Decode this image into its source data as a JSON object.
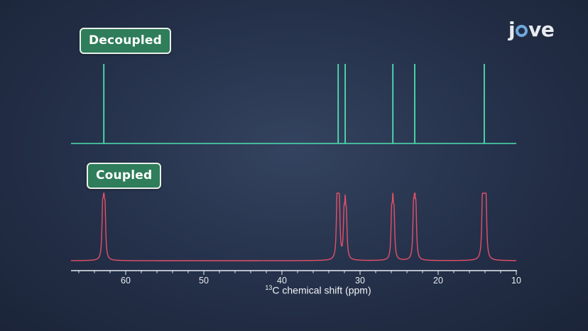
{
  "labels": {
    "decoupled": "Decoupled",
    "coupled": "Coupled"
  },
  "logo": {
    "j": "j",
    "ve": "ve"
  },
  "colors": {
    "decoupled": "#4de0b0",
    "coupled": "#e4506a",
    "axis": "#e8ecf1",
    "badge": "#2f7d5a"
  },
  "chart_data": {
    "type": "line",
    "xlabel_superscript": "13",
    "xlabel_rest": "C chemical shift (ppm)",
    "xlim": [
      67,
      10
    ],
    "xticks": [
      60,
      50,
      40,
      30,
      20,
      10
    ],
    "grid": false,
    "series": [
      {
        "name": "Decoupled",
        "peaks": [
          62.8,
          32.8,
          31.9,
          25.8,
          23.0,
          14.1
        ]
      },
      {
        "name": "Coupled",
        "peaks": [
          62.8,
          32.8,
          31.9,
          25.8,
          23.0,
          14.1
        ],
        "multiplicity": [
          3,
          3,
          3,
          3,
          3,
          4
        ]
      }
    ]
  }
}
